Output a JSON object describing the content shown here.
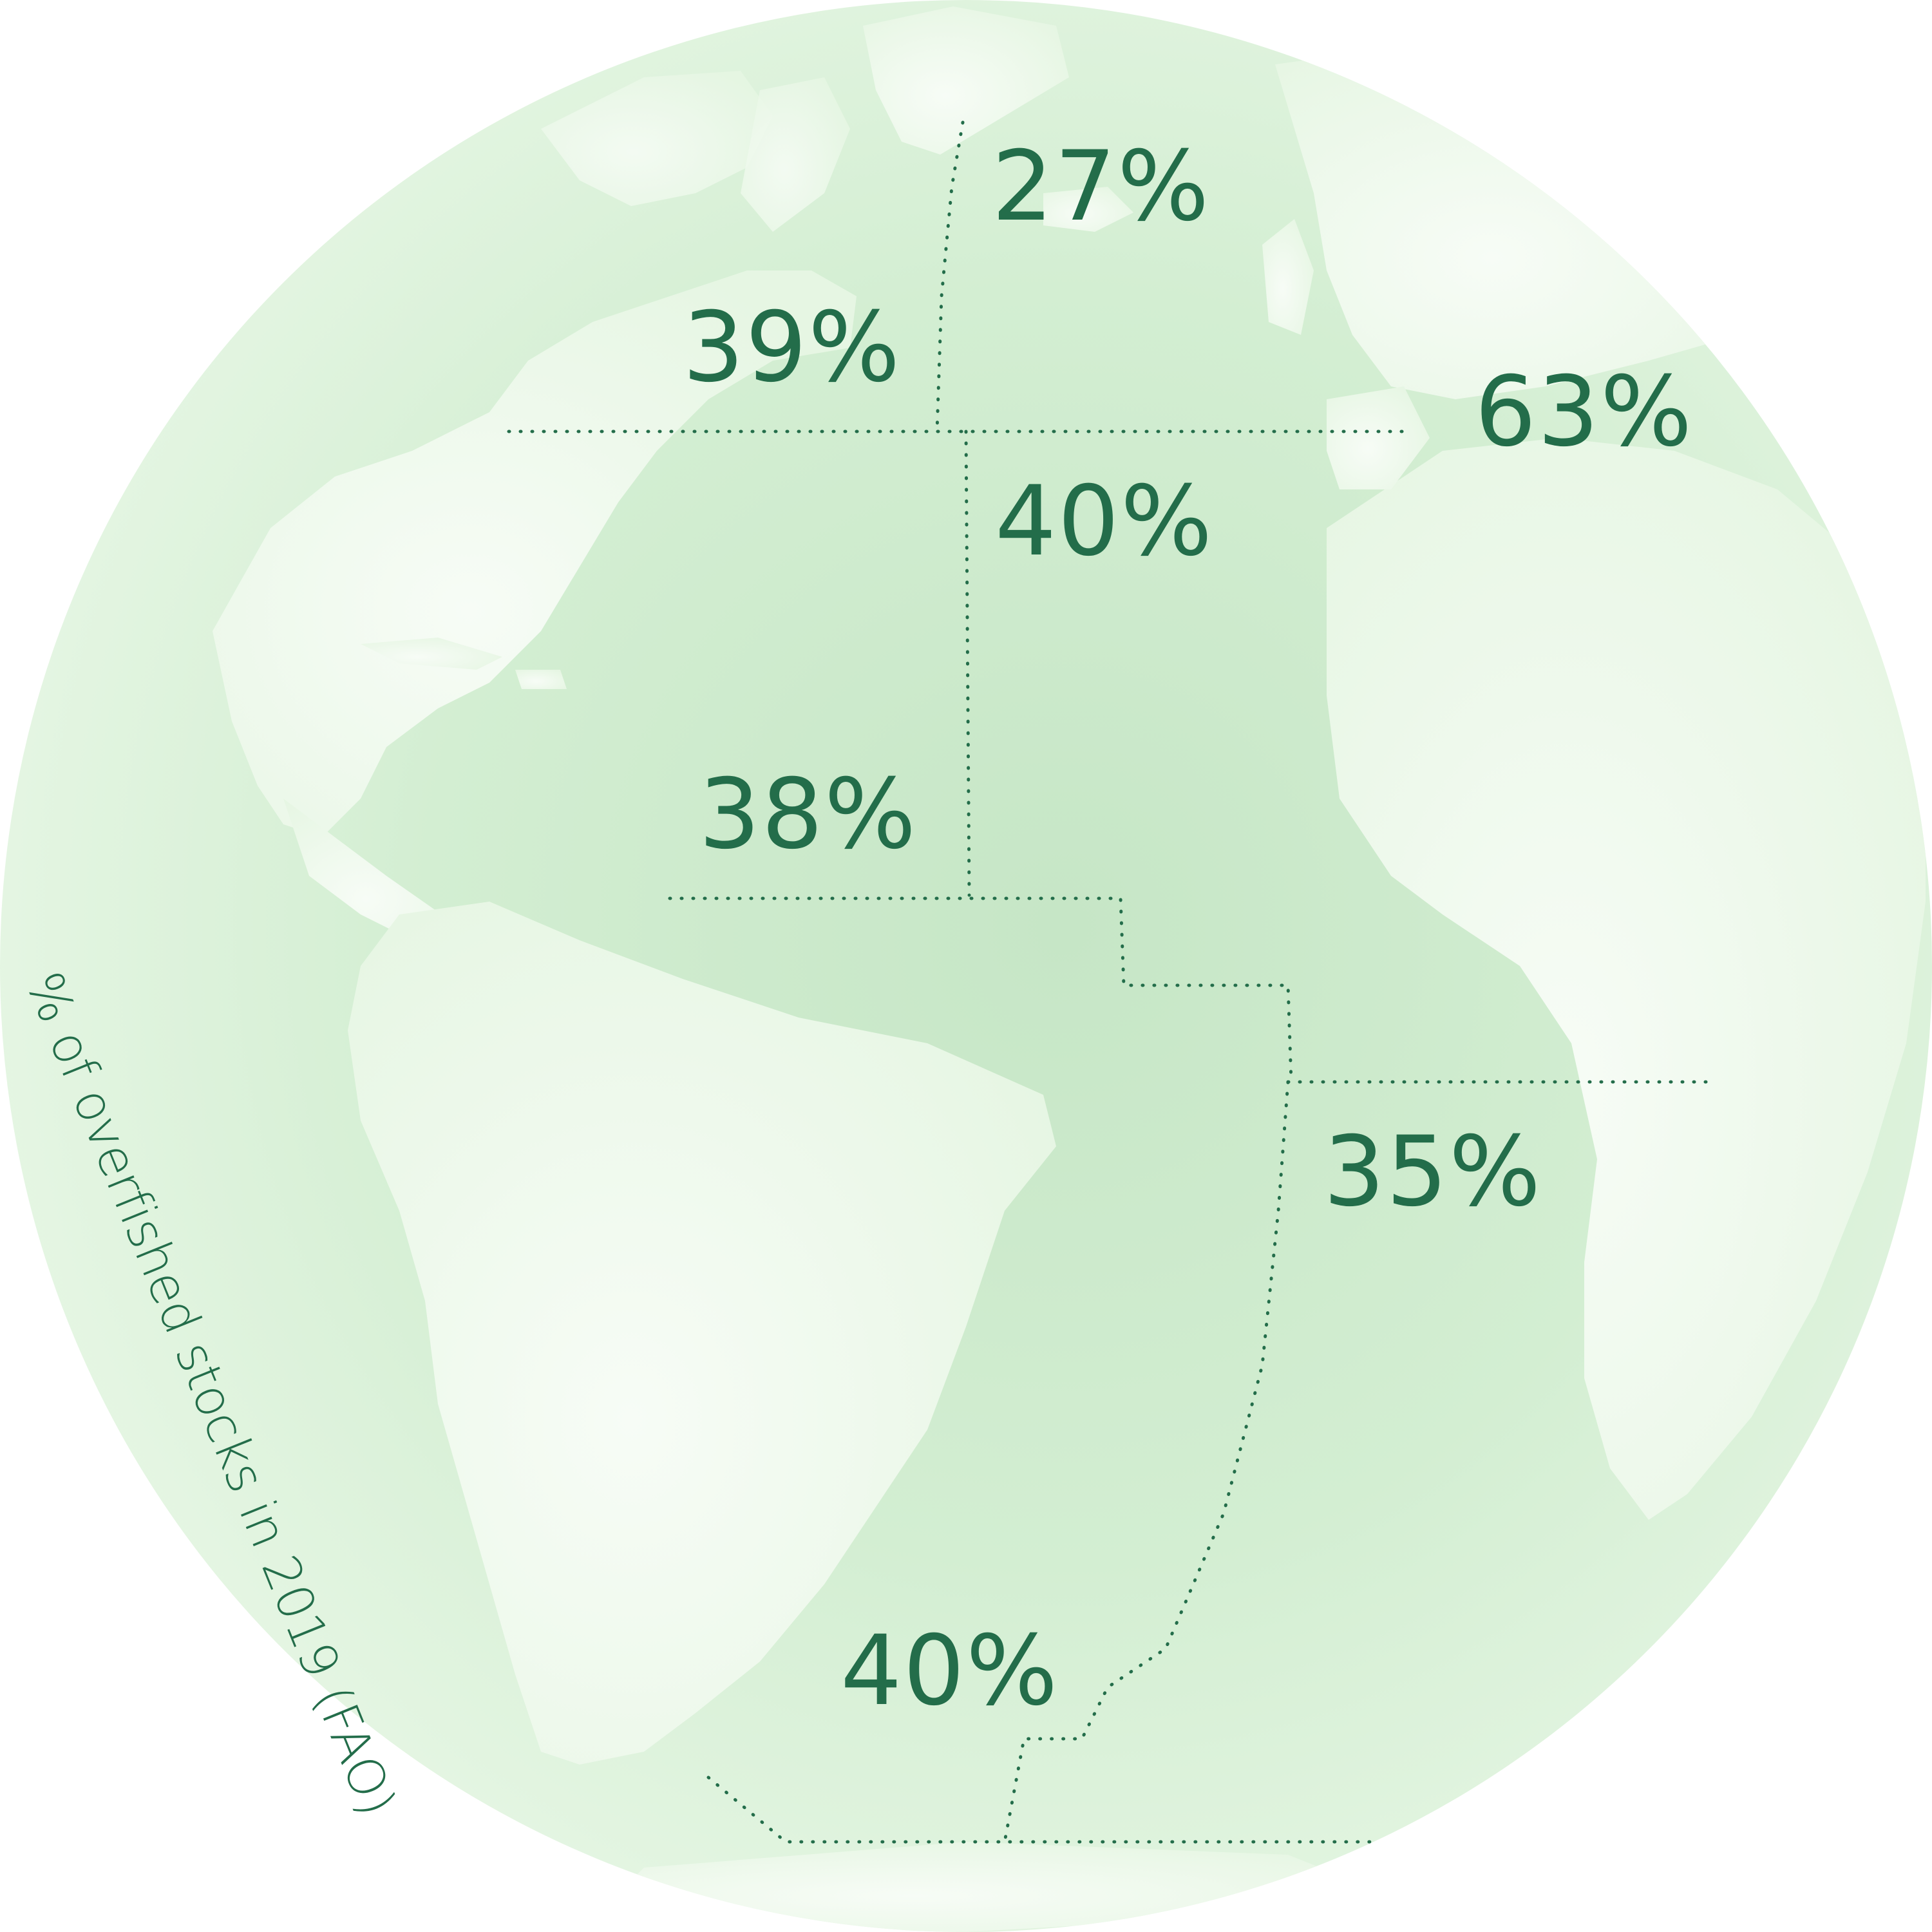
{
  "colors": {
    "ink": "#236d4a",
    "ocean_center": "#c8e7c8",
    "ocean_edge": "#e6f6e6",
    "land": "#eef9ec",
    "land_highlight": "#f8fdf7",
    "boundary": "#236d4a"
  },
  "caption": "% of overfished stocks in 2019 (FAO)",
  "regions": [
    {
      "id": "northwest-atlantic",
      "label": "27%",
      "value": 27
    },
    {
      "id": "northeast-atlantic-west",
      "label": "39%",
      "value": 39
    },
    {
      "id": "mediterranean-black-sea",
      "label": "63%",
      "value": 63
    },
    {
      "id": "eastern-central-atlantic",
      "label": "40%",
      "value": 40
    },
    {
      "id": "western-central-atlantic",
      "label": "38%",
      "value": 38
    },
    {
      "id": "southeast-atlantic",
      "label": "35%",
      "value": 35
    },
    {
      "id": "southwest-atlantic",
      "label": "40%",
      "value": 40
    }
  ]
}
